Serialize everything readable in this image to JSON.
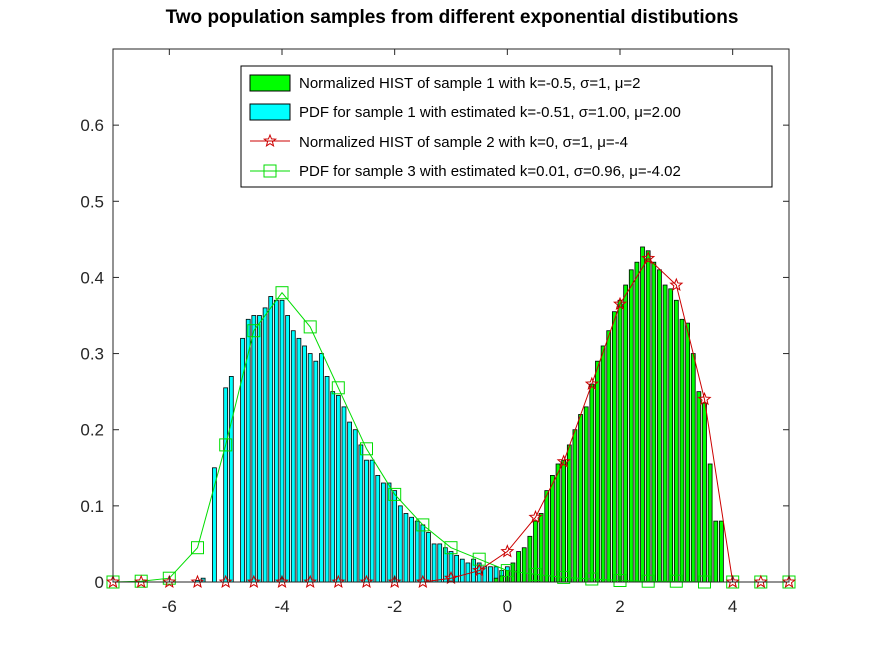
{
  "chart_data": {
    "type": "bar",
    "title": "Two population samples from different exponential distibutions",
    "xlabel": "",
    "ylabel": "",
    "xlim": [
      -7,
      5
    ],
    "ylim": [
      0,
      0.7
    ],
    "xticks": [
      -6,
      -4,
      -2,
      0,
      2,
      4
    ],
    "yticks": [
      0,
      0.1,
      0.2,
      0.3,
      0.4,
      0.5,
      0.6
    ],
    "grid": false,
    "legend_location": "top-right",
    "bar_width": 0.07,
    "colors": {
      "hist1": "#00ff00",
      "hist_cyan": "#00ffff",
      "bar_edge": "#000000",
      "pdf_red": "#cc0000",
      "pdf_green": "#00dd00"
    },
    "legend": [
      "Normalized HIST of sample 1 with k=-0.5, σ=1, μ=2",
      "PDF for sample 1 with estimated k=-0.51, σ=1.00, μ=2.00",
      "Normalized HIST of sample 2 with k=0, σ=1, μ=-4",
      "PDF for sample 3 with estimated k=0.01, σ=0.96, μ=-4.02"
    ],
    "hist_green": {
      "x": [
        -0.2,
        -0.1,
        0.0,
        0.1,
        0.2,
        0.3,
        0.4,
        0.5,
        0.6,
        0.7,
        0.8,
        0.9,
        1.0,
        1.1,
        1.2,
        1.3,
        1.4,
        1.5,
        1.6,
        1.7,
        1.8,
        1.9,
        2.0,
        2.1,
        2.2,
        2.3,
        2.4,
        2.5,
        2.6,
        2.7,
        2.8,
        2.9,
        3.0,
        3.1,
        3.2,
        3.3,
        3.4,
        3.5,
        3.6,
        3.7,
        3.8
      ],
      "values": [
        0.005,
        0.008,
        0.015,
        0.025,
        0.04,
        0.045,
        0.06,
        0.08,
        0.09,
        0.12,
        0.14,
        0.155,
        0.16,
        0.18,
        0.2,
        0.22,
        0.23,
        0.26,
        0.29,
        0.31,
        0.33,
        0.355,
        0.37,
        0.39,
        0.41,
        0.42,
        0.44,
        0.435,
        0.42,
        0.41,
        0.39,
        0.385,
        0.37,
        0.345,
        0.34,
        0.3,
        0.25,
        0.235,
        0.155,
        0.08,
        0.08
      ]
    },
    "hist_cyan": {
      "x": [
        -5.5,
        -5.4,
        -5.2,
        -5.0,
        -4.9,
        -4.7,
        -4.6,
        -4.5,
        -4.4,
        -4.3,
        -4.2,
        -4.1,
        -4.0,
        -3.9,
        -3.8,
        -3.7,
        -3.6,
        -3.5,
        -3.4,
        -3.3,
        -3.2,
        -3.1,
        -3.0,
        -2.9,
        -2.8,
        -2.7,
        -2.6,
        -2.5,
        -2.4,
        -2.3,
        -2.2,
        -2.1,
        -2.0,
        -1.9,
        -1.8,
        -1.7,
        -1.6,
        -1.5,
        -1.4,
        -1.3,
        -1.2,
        -1.1,
        -1.0,
        -0.9,
        -0.8,
        -0.7,
        -0.6,
        -0.5,
        -0.4,
        -0.3,
        -0.2,
        -0.1,
        0.0,
        0.1,
        0.2,
        0.3,
        0.4,
        0.5,
        0.6,
        0.7,
        0.8,
        0.9,
        1.0,
        1.1,
        1.2,
        1.4,
        1.5
      ],
      "values": [
        0.002,
        0.005,
        0.15,
        0.255,
        0.27,
        0.32,
        0.345,
        0.35,
        0.35,
        0.36,
        0.375,
        0.37,
        0.37,
        0.35,
        0.33,
        0.32,
        0.31,
        0.3,
        0.29,
        0.3,
        0.27,
        0.25,
        0.245,
        0.23,
        0.21,
        0.2,
        0.18,
        0.16,
        0.16,
        0.14,
        0.13,
        0.13,
        0.12,
        0.1,
        0.09,
        0.085,
        0.08,
        0.075,
        0.065,
        0.05,
        0.05,
        0.045,
        0.04,
        0.035,
        0.03,
        0.025,
        0.03,
        0.025,
        0.02,
        0.02,
        0.02,
        0.015,
        0.02,
        0.015,
        0.015,
        0.01,
        0.01,
        0.01,
        0.008,
        0.008,
        0.006,
        0.005,
        0.005,
        0.004,
        0.003,
        0.003,
        0.002
      ]
    },
    "pdf_red": {
      "x": [
        -7,
        -6.5,
        -6,
        -5.5,
        -5,
        -4.5,
        -4,
        -3.5,
        -3,
        -2.5,
        -2,
        -1.5,
        -1,
        -0.5,
        0,
        0.5,
        1,
        1.5,
        2,
        2.5,
        3,
        3.5,
        4,
        4.5,
        5
      ],
      "y": [
        0,
        0,
        0,
        0,
        0,
        0,
        0,
        0,
        0,
        0,
        0,
        0,
        0.005,
        0.015,
        0.04,
        0.085,
        0.158,
        0.26,
        0.365,
        0.425,
        0.39,
        0.24,
        0.0,
        0,
        0
      ]
    },
    "pdf_green": {
      "x": [
        -7,
        -6.5,
        -6,
        -5.5,
        -5,
        -4.5,
        -4,
        -3.5,
        -3,
        -2.5,
        -2,
        -1.5,
        -1,
        -0.5,
        0,
        0.5,
        1,
        1.5,
        2,
        2.5,
        3,
        3.5,
        4,
        4.5,
        5
      ],
      "y": [
        0,
        0.001,
        0.005,
        0.045,
        0.18,
        0.33,
        0.38,
        0.335,
        0.255,
        0.175,
        0.115,
        0.075,
        0.045,
        0.03,
        0.015,
        0.01,
        0.006,
        0.004,
        0.002,
        0.001,
        0.001,
        0.0,
        0,
        0,
        0
      ]
    }
  }
}
